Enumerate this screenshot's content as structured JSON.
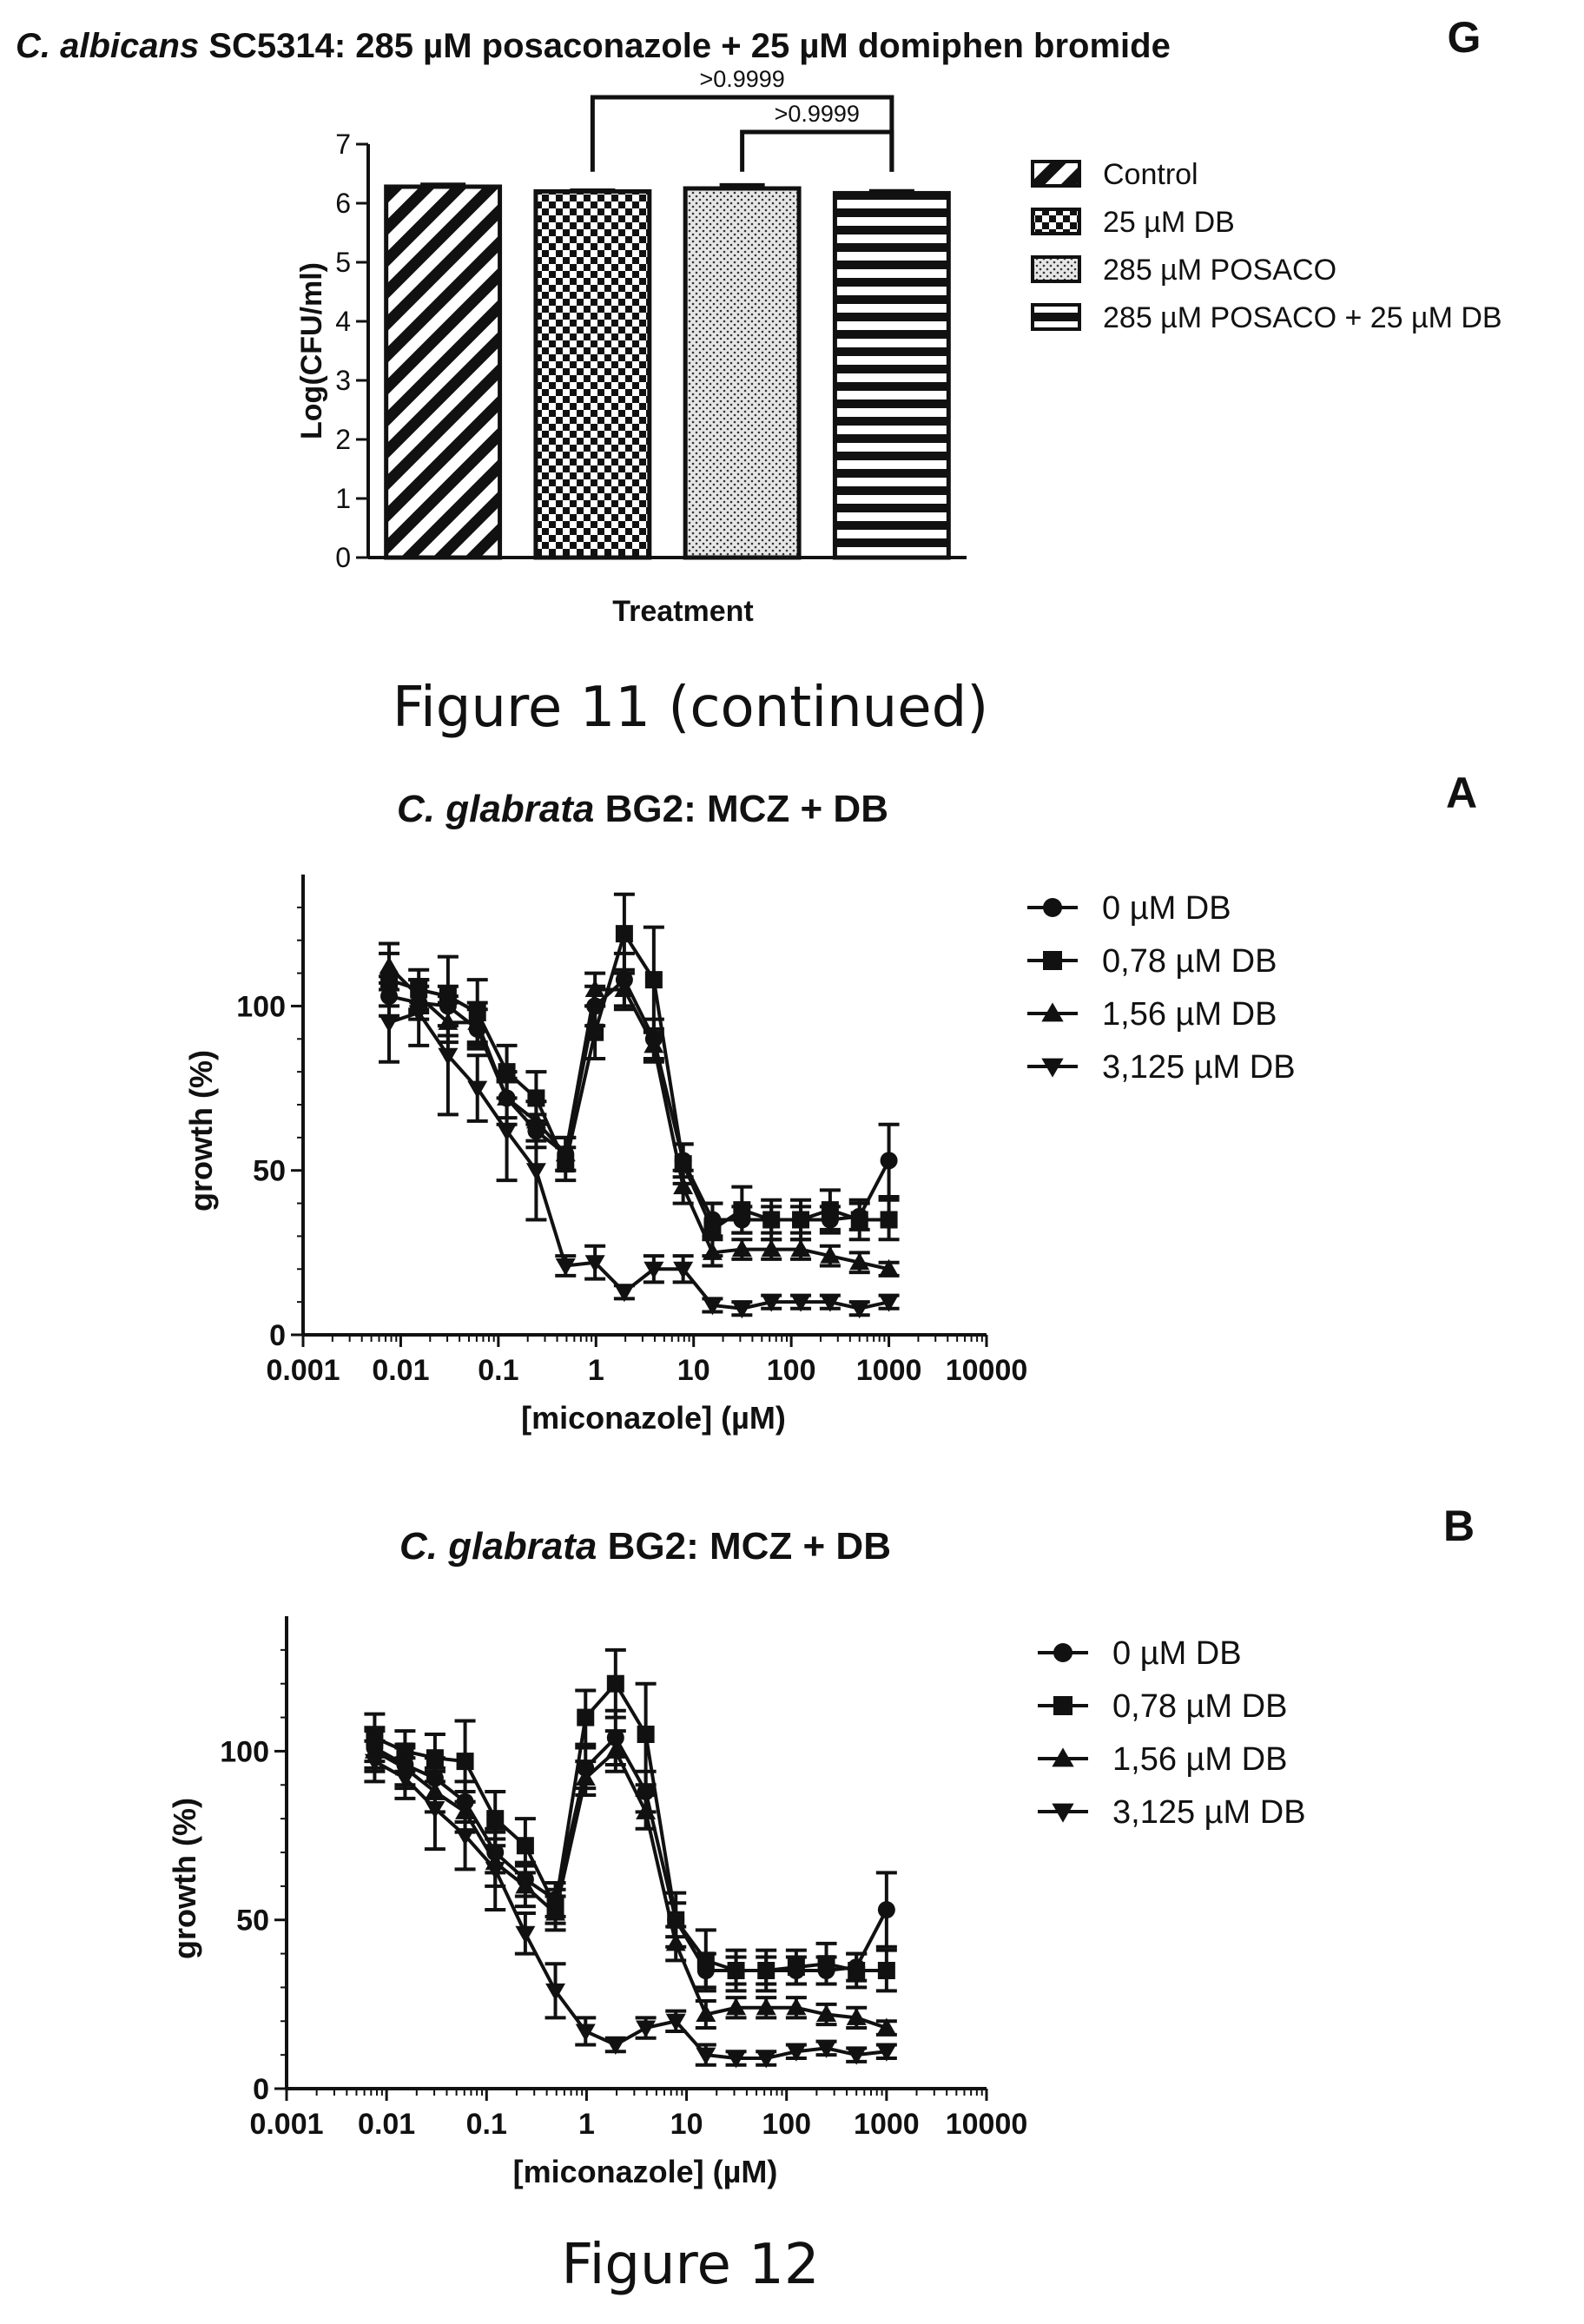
{
  "figure_g": {
    "panel_letter": "G",
    "title_italic": "C. albicans",
    "title_rest": " SC5314: 285 µM posaconazole + 25 µM domiphen bromide",
    "caption": "Figure 11 (continued)"
  },
  "figure_a": {
    "panel_letter": "A",
    "title_italic": "C. glabrata",
    "title_rest": " BG2: MCZ + DB"
  },
  "figure_b": {
    "panel_letter": "B",
    "title_italic": "C. glabrata",
    "title_rest": " BG2: MCZ + DB",
    "caption": "Figure 12"
  },
  "chart_data": [
    {
      "id": "G",
      "type": "bar",
      "title": "C. albicans SC5314: 285 µM posaconazole + 25 µM domiphen bromide",
      "xlabel": "Treatment",
      "ylabel": "Log(CFU/ml)",
      "ylim": [
        0,
        7
      ],
      "yticks": [
        "0",
        "1",
        "2",
        "3",
        "4",
        "5",
        "6",
        "7"
      ],
      "categories": [
        "Control",
        "25 µM DB",
        "285 µM POSACO",
        "285 µM POSACO + 25 µM DB"
      ],
      "values": [
        6.28,
        6.2,
        6.25,
        6.17
      ],
      "errors": [
        0.04,
        0.02,
        0.06,
        0.04
      ],
      "patterns": [
        "diagonal",
        "checker",
        "dots",
        "horizontal"
      ],
      "legend_position": "right",
      "annotations": [
        {
          "from": 1,
          "to": 3,
          "label": ">0.9999"
        },
        {
          "from": 2,
          "to": 3,
          "label": ">0.9999"
        }
      ]
    },
    {
      "id": "A",
      "type": "line",
      "xscale": "log",
      "xlim": [
        0.001,
        10000
      ],
      "ylim": [
        0,
        140
      ],
      "xticks": [
        "0.001",
        "0.01",
        "0.1",
        "1",
        "10",
        "100",
        "1000",
        "10000"
      ],
      "yticks": [
        "0",
        "50",
        "100"
      ],
      "xlabel": "[miconazole] (µM)",
      "ylabel": "growth (%)",
      "legend_position": "right",
      "x": [
        0.0076,
        0.0153,
        0.0305,
        0.061,
        0.122,
        0.244,
        0.488,
        0.977,
        1.95,
        3.91,
        7.81,
        15.6,
        31.25,
        62.5,
        125,
        250,
        500,
        1000
      ],
      "series": [
        {
          "name": "0 µM DB",
          "marker": "circle",
          "values": [
            103,
            101,
            100,
            93,
            72,
            62,
            55,
            100,
            108,
            90,
            53,
            35,
            35,
            35,
            35,
            35,
            36,
            53
          ],
          "errors": [
            6,
            5,
            6,
            6,
            6,
            5,
            5,
            6,
            8,
            6,
            5,
            5,
            4,
            4,
            4,
            4,
            4,
            11
          ]
        },
        {
          "name": "0,78 µM DB",
          "marker": "square",
          "values": [
            108,
            105,
            103,
            98,
            80,
            72,
            52,
            92,
            122,
            108,
            52,
            32,
            38,
            35,
            35,
            38,
            35,
            35
          ],
          "errors": [
            8,
            6,
            12,
            10,
            8,
            8,
            5,
            8,
            12,
            16,
            6,
            8,
            7,
            6,
            6,
            6,
            6,
            6
          ]
        },
        {
          "name": "1,56 µM DB",
          "marker": "triangle-up",
          "values": [
            112,
            103,
            95,
            95,
            72,
            65,
            55,
            105,
            105,
            88,
            45,
            25,
            26,
            26,
            26,
            24,
            22,
            20
          ],
          "errors": [
            7,
            5,
            6,
            6,
            8,
            6,
            5,
            5,
            6,
            5,
            5,
            4,
            3,
            3,
            3,
            3,
            3,
            2
          ]
        },
        {
          "name": "3,125 µM DB",
          "marker": "triangle-down",
          "values": [
            95,
            98,
            85,
            75,
            62,
            50,
            21,
            22,
            13,
            20,
            20,
            9,
            8,
            10,
            10,
            10,
            8,
            10
          ],
          "errors": [
            12,
            10,
            18,
            10,
            15,
            15,
            3,
            5,
            2,
            4,
            4,
            2,
            2,
            2,
            2,
            2,
            2,
            2
          ]
        }
      ]
    },
    {
      "id": "B",
      "type": "line",
      "xscale": "log",
      "xlim": [
        0.001,
        10000
      ],
      "ylim": [
        0,
        140
      ],
      "xticks": [
        "0.001",
        "0.01",
        "0.1",
        "1",
        "10",
        "100",
        "1000",
        "10000"
      ],
      "yticks": [
        "0",
        "50",
        "100"
      ],
      "xlabel": "[miconazole] (µM)",
      "ylabel": "growth (%)",
      "legend_position": "right",
      "x": [
        0.0076,
        0.0153,
        0.0305,
        0.061,
        0.122,
        0.244,
        0.488,
        0.977,
        1.95,
        3.91,
        7.81,
        15.6,
        31.25,
        62.5,
        125,
        250,
        500,
        1000
      ],
      "series": [
        {
          "name": "0 µM DB",
          "marker": "circle",
          "values": [
            101,
            96,
            92,
            85,
            70,
            62,
            56,
            95,
            104,
            88,
            50,
            35,
            35,
            35,
            35,
            35,
            36,
            53
          ],
          "errors": [
            6,
            6,
            6,
            6,
            6,
            5,
            5,
            6,
            8,
            6,
            5,
            5,
            4,
            4,
            4,
            4,
            4,
            11
          ]
        },
        {
          "name": "0,78 µM DB",
          "marker": "square",
          "values": [
            104,
            100,
            98,
            97,
            80,
            72,
            54,
            110,
            120,
            105,
            50,
            38,
            35,
            35,
            36,
            37,
            35,
            35
          ],
          "errors": [
            7,
            6,
            7,
            12,
            8,
            8,
            5,
            8,
            10,
            15,
            8,
            9,
            6,
            6,
            5,
            6,
            5,
            6
          ]
        },
        {
          "name": "1,56 µM DB",
          "marker": "triangle-up",
          "values": [
            100,
            95,
            88,
            82,
            67,
            60,
            52,
            92,
            100,
            82,
            43,
            22,
            24,
            24,
            24,
            22,
            21,
            18
          ],
          "errors": [
            6,
            6,
            6,
            6,
            7,
            6,
            5,
            5,
            6,
            5,
            5,
            4,
            3,
            3,
            3,
            3,
            3,
            2
          ]
        },
        {
          "name": "3,125 µM DB",
          "marker": "triangle-down",
          "values": [
            97,
            92,
            83,
            75,
            65,
            46,
            29,
            17,
            13,
            18,
            20,
            10,
            9,
            9,
            11,
            12,
            10,
            11
          ],
          "errors": [
            6,
            6,
            12,
            10,
            12,
            6,
            8,
            4,
            2,
            3,
            3,
            3,
            2,
            2,
            2,
            2,
            2,
            2
          ]
        }
      ]
    }
  ]
}
